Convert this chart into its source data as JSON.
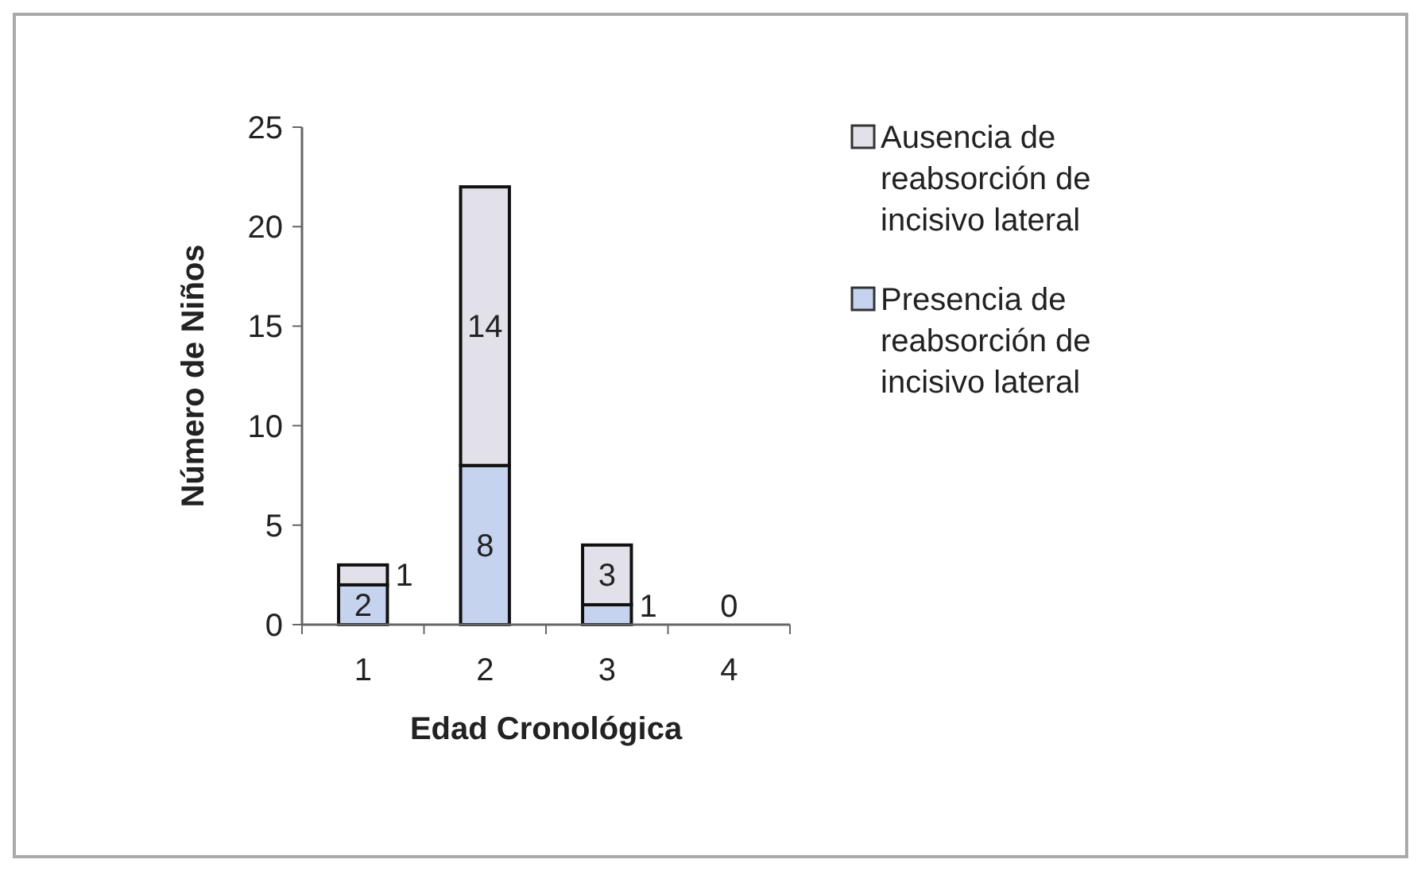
{
  "chart_data": {
    "type": "bar",
    "stacked": true,
    "xlabel": "Edad Cronológica",
    "ylabel": "Número de Niños",
    "categories": [
      "1",
      "2",
      "3",
      "4"
    ],
    "series": [
      {
        "name": "Presencia de reabsorción de incisivo lateral",
        "color": "#c5d3ee",
        "values": [
          2,
          8,
          1,
          0
        ],
        "value_labels": [
          "2",
          "8",
          "1",
          null
        ]
      },
      {
        "name": "Ausencia de reabsorción de incisivo lateral",
        "color": "#e2e0e8",
        "values": [
          1,
          14,
          3,
          0
        ],
        "value_labels": [
          "1",
          "14",
          "3",
          "0"
        ]
      }
    ],
    "ylim": [
      0,
      25
    ],
    "yticks": [
      0,
      5,
      10,
      15,
      20,
      25
    ],
    "grid": false,
    "legend": "right"
  }
}
